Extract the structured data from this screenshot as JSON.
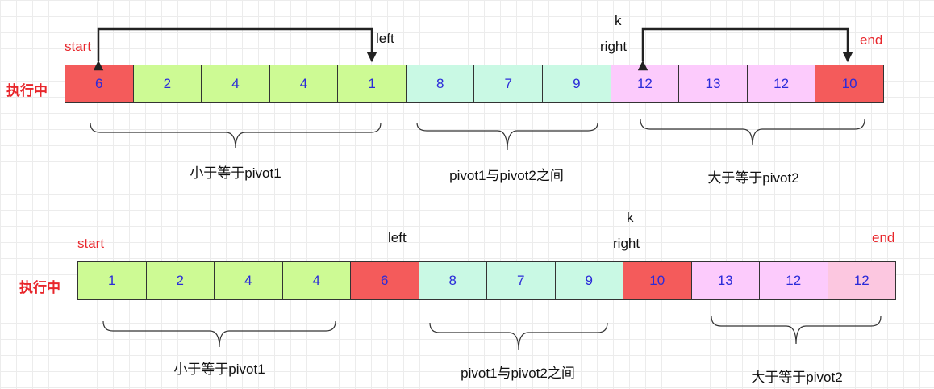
{
  "colors": {
    "pivot": "#f45b5b",
    "lower": "#cdfa94",
    "middle": "#c9f9e4",
    "upper": "#fccbfc",
    "upper_alt": "#fcc7e0",
    "marker": "#e8262b",
    "value": "#2b2bd9"
  },
  "row1": {
    "label": "执行中",
    "markers": {
      "start": "start",
      "left": "left",
      "k": "k",
      "right": "right",
      "end": "end"
    },
    "cells": [
      {
        "value": "6",
        "color": "pivot"
      },
      {
        "value": "2",
        "color": "lower"
      },
      {
        "value": "4",
        "color": "lower"
      },
      {
        "value": "4",
        "color": "lower"
      },
      {
        "value": "1",
        "color": "lower"
      },
      {
        "value": "8",
        "color": "middle"
      },
      {
        "value": "7",
        "color": "middle"
      },
      {
        "value": "9",
        "color": "middle"
      },
      {
        "value": "12",
        "color": "upper"
      },
      {
        "value": "13",
        "color": "upper"
      },
      {
        "value": "12",
        "color": "upper"
      },
      {
        "value": "10",
        "color": "pivot"
      }
    ],
    "groups": [
      "小于等于pivot1",
      "pivot1与pivot2之间",
      "大于等于pivot2"
    ]
  },
  "row2": {
    "label": "执行中",
    "markers": {
      "start": "start",
      "left": "left",
      "k": "k",
      "right": "right",
      "end": "end"
    },
    "cells": [
      {
        "value": "1",
        "color": "lower"
      },
      {
        "value": "2",
        "color": "lower"
      },
      {
        "value": "4",
        "color": "lower"
      },
      {
        "value": "4",
        "color": "lower"
      },
      {
        "value": "6",
        "color": "pivot"
      },
      {
        "value": "8",
        "color": "middle"
      },
      {
        "value": "7",
        "color": "middle"
      },
      {
        "value": "9",
        "color": "middle"
      },
      {
        "value": "10",
        "color": "pivot"
      },
      {
        "value": "13",
        "color": "upper"
      },
      {
        "value": "12",
        "color": "upper"
      },
      {
        "value": "12",
        "color": "upper_alt"
      }
    ],
    "groups": [
      "小于等于pivot1",
      "pivot1与pivot2之间",
      "大于等于pivot2"
    ]
  }
}
